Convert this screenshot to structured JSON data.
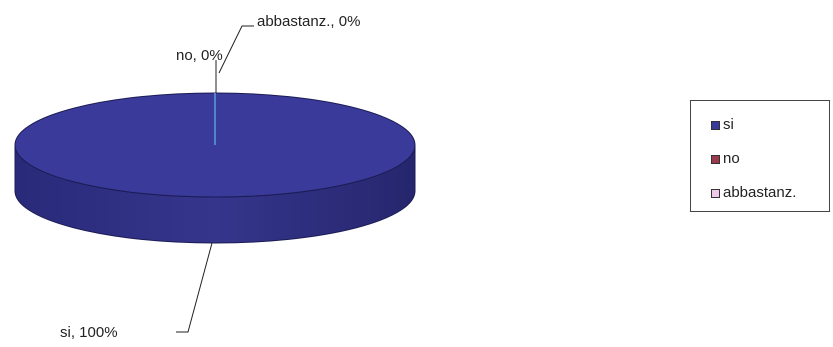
{
  "chart_data": {
    "type": "pie",
    "style": "3d",
    "slices": [
      {
        "name": "si",
        "value": 100,
        "label": "si, 100%",
        "color": "#3a3a9a"
      },
      {
        "name": "no",
        "value": 0,
        "label": "no, 0%",
        "color": "#9a3a4a"
      },
      {
        "name": "abbastanz.",
        "value": 0,
        "label": "abbastanz., 0%",
        "color": "#f0c8e8"
      }
    ],
    "legend_position": "right"
  }
}
